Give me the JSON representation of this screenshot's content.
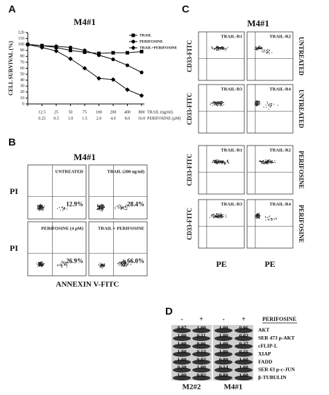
{
  "panel_a": {
    "letter": "A",
    "type": "line",
    "title": "M4#1",
    "y_label": "CELL SURVIVAL (%)",
    "ylim": [
      0,
      120
    ],
    "yticks": [
      0,
      10,
      20,
      30,
      40,
      50,
      60,
      70,
      80,
      90,
      100,
      110,
      120
    ],
    "categories": [
      null,
      "12.5",
      "25",
      "50",
      "75",
      "100",
      "200",
      "400",
      "800"
    ],
    "categories2": [
      null,
      "0.25",
      "0.5",
      "1.0",
      "1.5",
      "2.0",
      "4.0",
      "8.0",
      "16.0"
    ],
    "x_label": "TRAIL (ng/ml)",
    "x_label2": "PERIFOSINE (µM)",
    "series": [
      {
        "name": "TRAIL",
        "marker": "square",
        "values": [
          100,
          98,
          95,
          90,
          87,
          85,
          86,
          86,
          88
        ]
      },
      {
        "name": "PERIFOSINE",
        "marker": "circle",
        "values": [
          100,
          98,
          97,
          95,
          90,
          82,
          75,
          65,
          53
        ]
      },
      {
        "name": "TRAIL+PERIFOSINE",
        "marker": "diamond",
        "values": [
          100,
          95,
          89,
          76,
          60,
          43,
          41,
          24,
          14
        ]
      }
    ]
  },
  "panel_b": {
    "letter": "B",
    "title": "M4#1",
    "y_label": "PI",
    "x_label": "ANNEXIN V-FITC",
    "plots": [
      {
        "label": "UNTREATED",
        "percent": "12.9%"
      },
      {
        "label": "TRAIL (200 ng/ml)",
        "percent": "28.4%"
      },
      {
        "label": "PERIFOSINE (4 µM)",
        "percent": "26.9%"
      },
      {
        "label": "TRAIL + PERIFOSINE",
        "percent": "66.0%"
      }
    ]
  },
  "panel_c": {
    "letter": "C",
    "title": "M4#1",
    "y_label": "CD33-FITC",
    "x_label": "PE",
    "row_labels": [
      "UNTREATED",
      "UNTREATED",
      "PERIFOSINE",
      "PERIFOSINE"
    ],
    "plot_labels": [
      [
        "TRAIL-R1",
        "TRAIL-R2"
      ],
      [
        "TRAIL-R3",
        "TRAIL-R4"
      ],
      [
        "TRAIL-R1",
        "TRAIL-R2"
      ],
      [
        "TRAIL-R3",
        "TRAIL-R4"
      ]
    ]
  },
  "panel_d": {
    "letter": "D",
    "lane_signs": [
      "-",
      "+",
      "-",
      "+"
    ],
    "treatment": "PERIFOSINE",
    "cell_lines": [
      "M2#2",
      "M4#1"
    ],
    "rows": [
      {
        "protein": "AKT",
        "values": [
          "0.87",
          "1.00",
          "1.00",
          "0.96"
        ]
      },
      {
        "protein": "SER 473 p-AKT",
        "values": [
          "1.00",
          "0.11",
          "1.00",
          "0.02"
        ]
      },
      {
        "protein": "cFLIP-L",
        "values": [
          "1.00",
          "0.06",
          "1.00",
          "0.27"
        ]
      },
      {
        "protein": "XIAP",
        "values": [
          "1.00",
          "0.13",
          "1.00",
          "0.21"
        ]
      },
      {
        "protein": "FADD",
        "values": [
          "1.00",
          "0.83",
          "0.89",
          "1.00"
        ]
      },
      {
        "protein": "SER 63 p-c-JUN",
        "values": [
          "0.39",
          "1.00",
          "0.14",
          "1.00"
        ]
      },
      {
        "protein": "β-TUBULIN",
        "values": [
          "1.00",
          "0.92",
          "0.88",
          "1.00"
        ]
      }
    ]
  }
}
